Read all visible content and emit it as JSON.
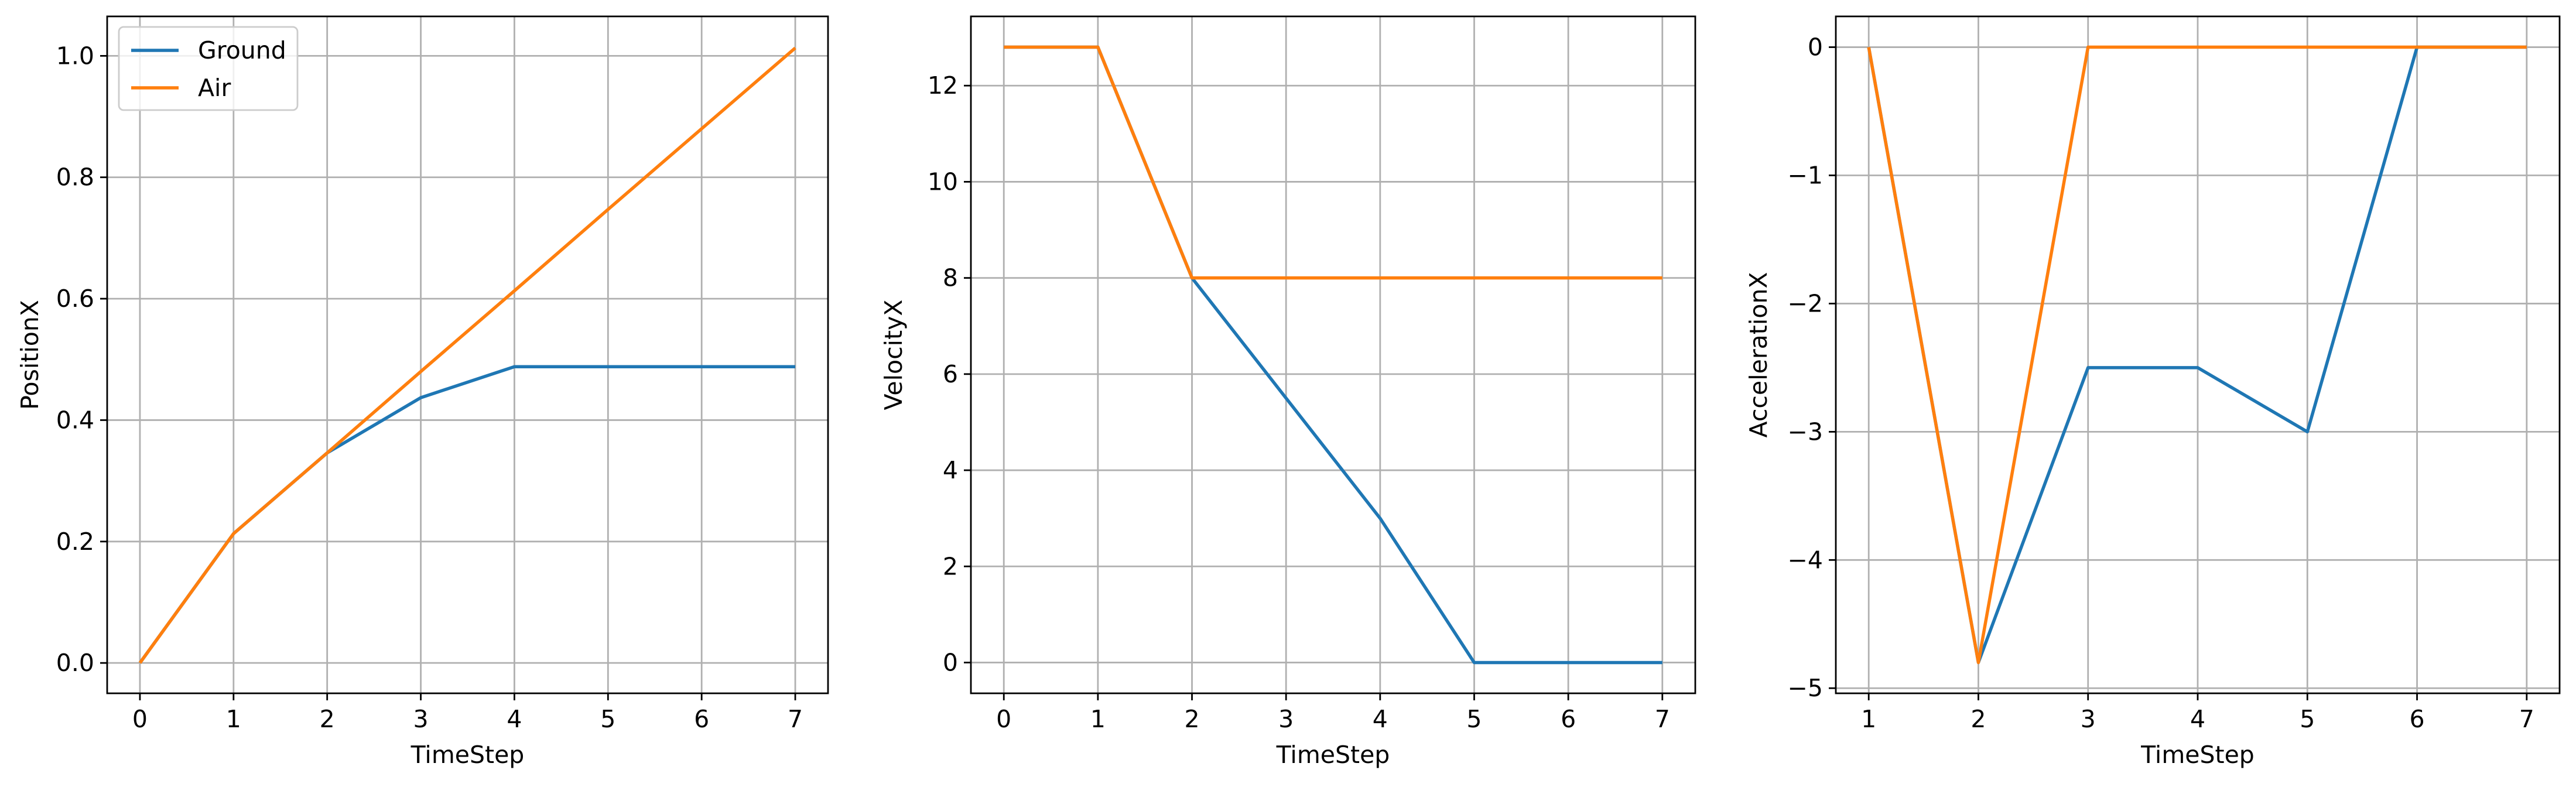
{
  "chart_data": [
    {
      "type": "line",
      "xlabel": "TimeStep",
      "ylabel": "PositionX",
      "xlim": [
        -0.35,
        7.35
      ],
      "ylim": [
        -0.05,
        1.065
      ],
      "xticks": [
        0,
        1,
        2,
        3,
        4,
        5,
        6,
        7
      ],
      "yticks": [
        0.0,
        0.2,
        0.4,
        0.6,
        0.8,
        1.0
      ],
      "ytick_labels": [
        "0.0",
        "0.2",
        "0.4",
        "0.6",
        "0.8",
        "1.0"
      ],
      "grid": true,
      "legend": {
        "placement": "top-left",
        "entries": [
          "Ground",
          "Air"
        ]
      },
      "series": [
        {
          "name": "Ground",
          "color": "#1f77b4",
          "x": [
            0,
            1,
            2,
            3,
            4,
            5,
            6,
            7
          ],
          "values": [
            0.0,
            0.213,
            0.346,
            0.437,
            0.488,
            0.488,
            0.488,
            0.488
          ]
        },
        {
          "name": "Air",
          "color": "#ff7f0e",
          "x": [
            0,
            1,
            2,
            3,
            4,
            5,
            6,
            7
          ],
          "values": [
            0.0,
            0.213,
            0.346,
            0.48,
            0.613,
            0.747,
            0.88,
            1.013
          ]
        }
      ]
    },
    {
      "type": "line",
      "xlabel": "TimeStep",
      "ylabel": "VelocityX",
      "xlim": [
        -0.35,
        7.35
      ],
      "ylim": [
        -0.64,
        13.44
      ],
      "xticks": [
        0,
        1,
        2,
        3,
        4,
        5,
        6,
        7
      ],
      "yticks": [
        0,
        2,
        4,
        6,
        8,
        10,
        12
      ],
      "ytick_labels": [
        "0",
        "2",
        "4",
        "6",
        "8",
        "10",
        "12"
      ],
      "grid": true,
      "series": [
        {
          "color": "#1f77b4",
          "x": [
            0,
            1,
            2,
            3,
            4,
            5,
            6,
            7
          ],
          "values": [
            12.8,
            12.8,
            8.0,
            5.5,
            3.0,
            0.0,
            0.0,
            0.0
          ]
        },
        {
          "color": "#ff7f0e",
          "x": [
            0,
            1,
            2,
            3,
            4,
            5,
            6,
            7
          ],
          "values": [
            12.8,
            12.8,
            8.0,
            8.0,
            8.0,
            8.0,
            8.0,
            8.0
          ]
        }
      ]
    },
    {
      "type": "line",
      "xlabel": "TimeStep",
      "ylabel": "AccelerationX",
      "xlim": [
        0.7,
        7.3
      ],
      "ylim": [
        -5.04,
        0.24
      ],
      "xticks": [
        1,
        2,
        3,
        4,
        5,
        6,
        7
      ],
      "yticks": [
        -5,
        -4,
        -3,
        -2,
        -1,
        0
      ],
      "ytick_labels": [
        "−5",
        "−4",
        "−3",
        "−2",
        "−1",
        "0"
      ],
      "grid": true,
      "series": [
        {
          "color": "#1f77b4",
          "x": [
            1,
            2,
            3,
            4,
            5,
            6,
            7
          ],
          "values": [
            0.0,
            -4.8,
            -2.5,
            -2.5,
            -3.0,
            0.0,
            0.0
          ]
        },
        {
          "color": "#ff7f0e",
          "x": [
            1,
            2,
            3,
            4,
            5,
            6,
            7
          ],
          "values": [
            0.0,
            -4.8,
            0.0,
            0.0,
            0.0,
            0.0,
            0.0
          ]
        }
      ]
    }
  ]
}
